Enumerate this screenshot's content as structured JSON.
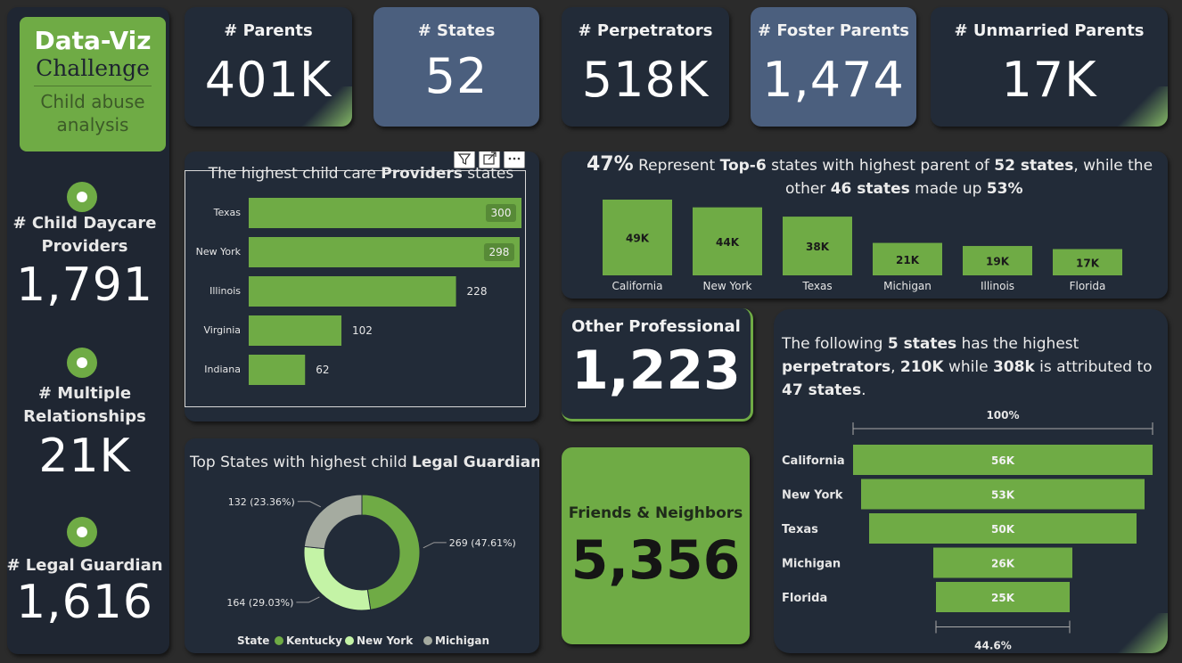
{
  "logo": {
    "line1": "Data-Viz",
    "line2": "Challenge",
    "line3": "Child abuse",
    "line4": "analysis"
  },
  "sidebar": [
    {
      "label_line1": "# Child Daycare",
      "label_line2": "Providers",
      "value": "1,791"
    },
    {
      "label_line1": "# Multiple",
      "label_line2": "Relationships",
      "value": "21K"
    },
    {
      "label_line1": "# Legal Guardian",
      "label_line2": "",
      "value": "1,616"
    }
  ],
  "kpis": [
    {
      "label": "# Parents",
      "value": "401K"
    },
    {
      "label": "# States",
      "value": "52"
    },
    {
      "label": "# Perpetrators",
      "value": "518K"
    },
    {
      "label": "# Foster Parents",
      "value": "1,474"
    },
    {
      "label": "# Unmarried Parents",
      "value": "17K"
    }
  ],
  "providers": {
    "title_pre": "The highest child care ",
    "title_bold": "Providers",
    "title_post": " states"
  },
  "top6": {
    "pct": "47%",
    "text1": " Represent ",
    "bold1": "Top-6",
    "text2": " states with highest parent of ",
    "bold2": "52 states",
    "text3": ", while the",
    "text4": "other ",
    "bold3": "46 states",
    "text5": " made up ",
    "bold4": "53%"
  },
  "other_professional": {
    "label": "Other Professional",
    "value": "1,223"
  },
  "friends": {
    "label": "Friends & Neighbors",
    "value": "5,356"
  },
  "funnel_text": {
    "t1": "The following ",
    "b1": "5 states",
    "t2": " has the highest",
    "b2": "perpetrators",
    "t3": ", ",
    "b3": "210K",
    "t4": " while ",
    "b4": "308k",
    "t5": " is attributed to",
    "b5": "47 states",
    "t6": "."
  },
  "donut_title": {
    "pre": "Top States with highest child ",
    "bold": "Legal Guardian"
  },
  "chart_data": [
    {
      "type": "bar",
      "orientation": "horizontal",
      "title": "The highest child care Providers states",
      "categories": [
        "Texas",
        "New York",
        "Illinois",
        "Virginia",
        "Indiana"
      ],
      "values": [
        300,
        298,
        228,
        102,
        62
      ],
      "labels": [
        "300",
        "298",
        "228",
        "102",
        "62"
      ],
      "colors": {
        "bar": "#6fab45"
      }
    },
    {
      "type": "bar",
      "title": "",
      "categories": [
        "California",
        "New York",
        "Texas",
        "Michigan",
        "Illinois",
        "Florida"
      ],
      "values": [
        49000,
        44000,
        38000,
        21000,
        19000,
        17000
      ],
      "labels": [
        "49K",
        "44K",
        "38K",
        "21K",
        "19K",
        "17K"
      ],
      "colors": {
        "bar": "#6fab45"
      }
    },
    {
      "type": "pie",
      "variant": "donut",
      "title": "Top States with highest child Legal Guardian",
      "legend_title": "State",
      "legend_placement": "bottom",
      "categories": [
        "Kentucky",
        "New York",
        "Michigan"
      ],
      "values": [
        269,
        164,
        132
      ],
      "labels": [
        "269 (47.61%)",
        "164 (29.03%)",
        "132 (23.36%)"
      ],
      "colors": [
        "#6fab45",
        "#c4f3a6",
        "#a5aba0"
      ]
    },
    {
      "type": "bar",
      "variant": "funnel",
      "categories": [
        "California",
        "New York",
        "Texas",
        "Michigan",
        "Florida"
      ],
      "values": [
        56000,
        53000,
        50000,
        26000,
        25000
      ],
      "labels": [
        "56K",
        "53K",
        "50K",
        "26K",
        "25K"
      ],
      "top_percent": "100%",
      "bottom_percent": "44.6%",
      "colors": {
        "bar": "#6fab45"
      }
    }
  ]
}
